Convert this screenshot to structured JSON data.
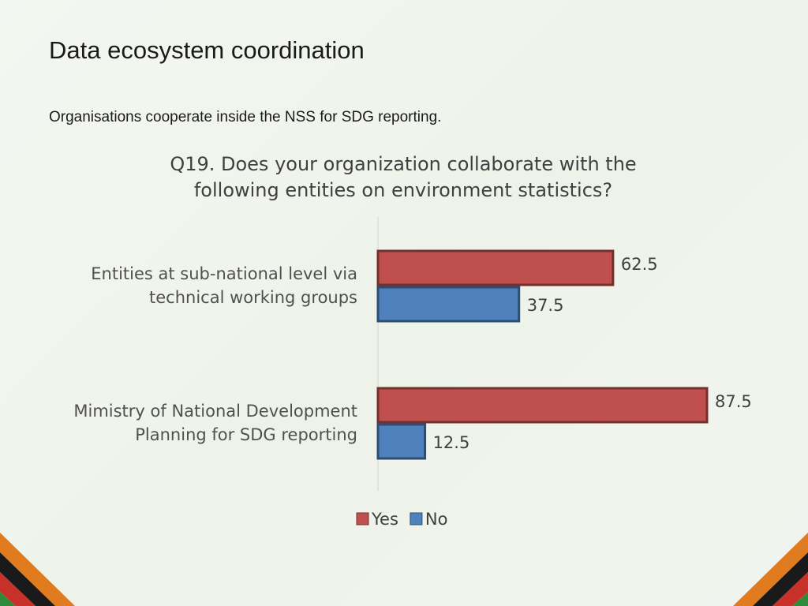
{
  "slide": {
    "title": "Data ecosystem coordination",
    "subtitle": "Organisations cooperate inside the NSS for SDG reporting."
  },
  "chart_data": {
    "type": "bar",
    "orientation": "horizontal",
    "title": "Q19. Does your organization collaborate with the following entities on environment statistics?",
    "categories": [
      "Entities at sub-national level via technical working groups",
      "Mimistry of National Development Planning for SDG reporting"
    ],
    "series": [
      {
        "name": "Yes",
        "color": "#c0504d",
        "values": [
          62.5,
          87.5
        ]
      },
      {
        "name": "No",
        "color": "#4f81bd",
        "values": [
          37.5,
          12.5
        ]
      }
    ],
    "legend": "bottom"
  }
}
